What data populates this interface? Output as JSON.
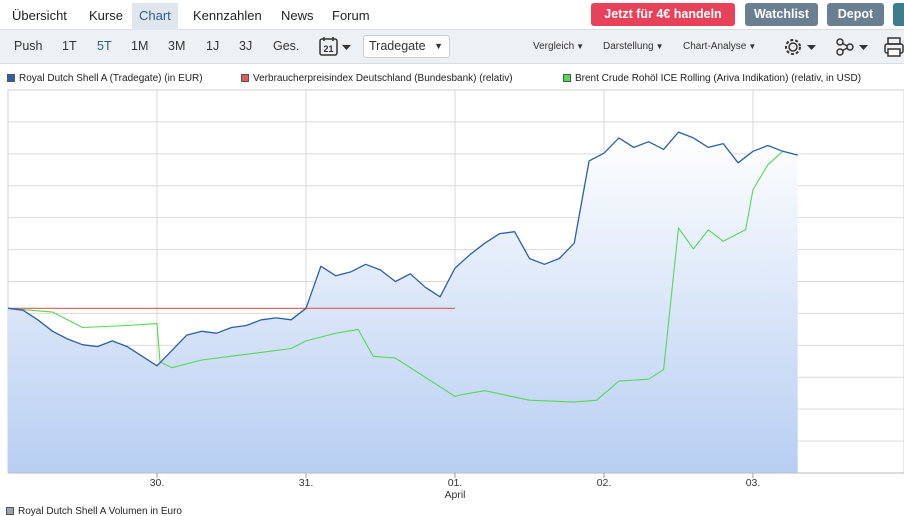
{
  "nav": {
    "tabs": [
      "Übersicht",
      "Kurse",
      "Chart",
      "Kennzahlen",
      "News",
      "Forum"
    ],
    "active": "Chart",
    "buttons": {
      "trade": "Jetzt für 4€ handeln",
      "watchlist": "Watchlist",
      "depot": "Depot"
    }
  },
  "toolbar": {
    "ranges": [
      "Push",
      "1T",
      "5T",
      "1M",
      "3M",
      "1J",
      "3J",
      "Ges."
    ],
    "active_range": "5T",
    "calendar_day": "21",
    "exchange": "Tradegate",
    "menus": [
      "Vergleich",
      "Darstellung",
      "Chart-Analyse"
    ]
  },
  "colors": {
    "series1": "#2b5fa8",
    "series2": "#e05a5a",
    "series3": "#55d855",
    "accent": "#2f5f8f",
    "trade_button": "#e8425a"
  },
  "chart_data": {
    "type": "line",
    "legend_position": "top",
    "grid": true,
    "x_ticks": [
      "30.",
      "31.",
      "01.",
      "02.",
      "03."
    ],
    "x_sublabel": "April",
    "series": [
      {
        "name": "Royal Dutch Shell A (Tradegate) (in EUR)",
        "style": "area",
        "x": [
          0.0,
          0.1,
          0.2,
          0.3,
          0.4,
          0.5,
          0.6,
          0.7,
          0.8,
          0.9,
          1.0,
          1.1,
          1.2,
          1.3,
          1.4,
          1.5,
          1.6,
          1.7,
          1.8,
          1.9,
          2.0,
          2.1,
          2.2,
          2.3,
          2.4,
          2.5,
          2.6,
          2.7,
          2.8,
          2.9,
          3.0,
          3.1,
          3.2,
          3.3,
          3.4,
          3.5,
          3.6,
          3.7,
          3.8,
          3.9,
          4.0,
          4.1,
          4.2,
          4.3,
          4.4,
          4.5,
          4.6,
          4.7,
          4.8,
          4.9,
          5.0,
          5.1,
          5.2,
          5.3
        ],
        "values": [
          86,
          85,
          80,
          74,
          70,
          67,
          66,
          69,
          66,
          61,
          56,
          64,
          72,
          74,
          73,
          76,
          77,
          80,
          81,
          80,
          86,
          108,
          103,
          105,
          109,
          106,
          100,
          104,
          97,
          92,
          107,
          114,
          120,
          125,
          126,
          112,
          109,
          112,
          120,
          163,
          167,
          175,
          170,
          173,
          169,
          178,
          175,
          170,
          172,
          162,
          168,
          171,
          168,
          166
        ]
      },
      {
        "name": "Verbraucherpreisindex Deutschland (Bundesbank) (relativ)",
        "style": "line",
        "x": [
          0.0,
          3.0
        ],
        "values": [
          86,
          86
        ]
      },
      {
        "name": "Brent Crude Rohöl ICE Rolling (Ariva Indikation) (relativ, in USD)",
        "style": "line",
        "x": [
          0.0,
          0.3,
          0.5,
          0.8,
          1.0,
          1.02,
          1.1,
          1.3,
          1.5,
          1.7,
          1.9,
          2.0,
          2.2,
          2.35,
          2.45,
          2.6,
          2.9,
          3.0,
          3.05,
          3.2,
          3.5,
          3.8,
          3.95,
          4.1,
          4.3,
          4.4,
          4.5,
          4.6,
          4.7,
          4.8,
          4.95,
          5.0,
          5.1,
          5.2,
          5.3
        ],
        "values": [
          86,
          84,
          76,
          77,
          78,
          58,
          55,
          59,
          61,
          63,
          65,
          69,
          73,
          75,
          61,
          60,
          45,
          40,
          41,
          43,
          38,
          37,
          38,
          48,
          49,
          54,
          128,
          117,
          127,
          121,
          127,
          148,
          161,
          168,
          166
        ]
      }
    ]
  },
  "footer_legend": "Royal Dutch Shell A Volumen in Euro"
}
